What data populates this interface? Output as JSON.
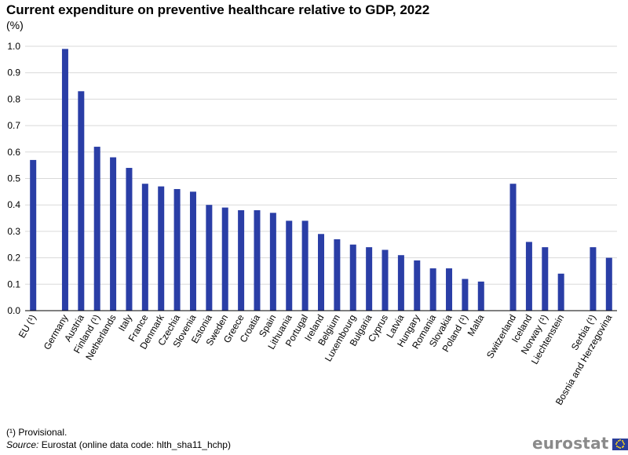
{
  "header": {
    "title": "Current expenditure on preventive healthcare relative to GDP, 2022",
    "unit": "(%)"
  },
  "footer": {
    "footnote": "(¹) Provisional.",
    "source_label": "Source:",
    "source_text": " Eurostat (online data code: hlth_sha11_hchp)"
  },
  "logo": {
    "text": "eurostat"
  },
  "colors": {
    "bar": "#2a3ea6",
    "grid": "#d9d9d9",
    "axis": "#000000"
  },
  "chart_data": {
    "type": "bar",
    "title": "Current expenditure on preventive healthcare relative to GDP, 2022",
    "ylabel": "(%)",
    "xlabel": "",
    "ylim": [
      0,
      1.0
    ],
    "yticks": [
      "0.0",
      "0.1",
      "0.2",
      "0.3",
      "0.4",
      "0.5",
      "0.6",
      "0.7",
      "0.8",
      "0.9",
      "1.0"
    ],
    "grid": true,
    "categories": [
      "EU (¹)",
      "",
      "Germany",
      "Austria",
      "Finland (¹)",
      "Netherlands",
      "Italy",
      "France",
      "Denmark",
      "Czechia",
      "Slovenia",
      "Estonia",
      "Sweden",
      "Greece",
      "Croatia",
      "Spain",
      "Lithuania",
      "Portugal",
      "Ireland",
      "Belgium",
      "Luxembourg",
      "Bulgaria",
      "Cyprus",
      "Latvia",
      "Hungary",
      "Romania",
      "Slovakia",
      "Poland (¹)",
      "Malta",
      "",
      "Switzerland",
      "Iceland",
      "Norway (¹)",
      "Liechtenstein",
      "",
      "Serbia (¹)",
      "Bosnia and Herzegovina"
    ],
    "values": [
      0.57,
      null,
      0.99,
      0.83,
      0.62,
      0.58,
      0.54,
      0.48,
      0.47,
      0.46,
      0.45,
      0.4,
      0.39,
      0.38,
      0.38,
      0.37,
      0.34,
      0.34,
      0.29,
      0.27,
      0.25,
      0.24,
      0.23,
      0.21,
      0.19,
      0.16,
      0.16,
      0.12,
      0.11,
      null,
      0.48,
      0.26,
      0.24,
      0.14,
      null,
      0.24,
      0.2
    ]
  }
}
